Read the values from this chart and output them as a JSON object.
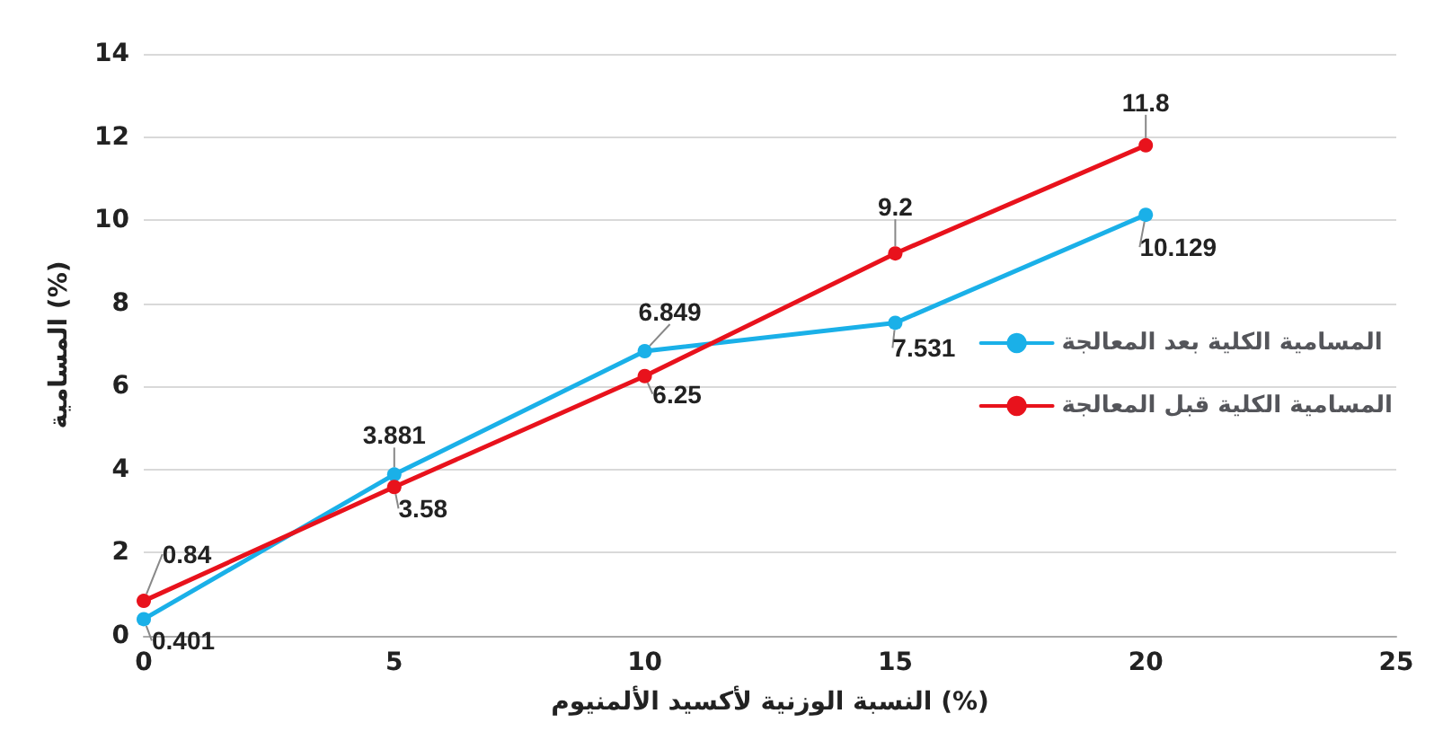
{
  "chart_data": {
    "type": "line",
    "xlabel": "النسبة الوزنية لأكسيد الألمنيوم (%)",
    "ylabel": "المسامية (%)",
    "x": [
      0,
      5,
      10,
      15,
      20
    ],
    "series": [
      {
        "name": "المسامية الكلية بعد المعالجة",
        "color": "#1ab0e8",
        "values": [
          0.401,
          3.881,
          6.849,
          7.531,
          10.129
        ]
      },
      {
        "name": "المسامية الكلية قبل المعالجة",
        "color": "#e8121c",
        "values": [
          0.84,
          3.58,
          6.25,
          9.2,
          11.8
        ]
      }
    ],
    "xlim": [
      0,
      25
    ],
    "xticks": [
      0,
      5,
      10,
      15,
      20,
      25
    ],
    "ylim": [
      0,
      14
    ],
    "yticks": [
      0,
      2,
      4,
      6,
      8,
      10,
      12,
      14
    ],
    "grid": "y",
    "legend": "right",
    "marker": "circle",
    "line_style": "solid",
    "data_labels": true
  }
}
